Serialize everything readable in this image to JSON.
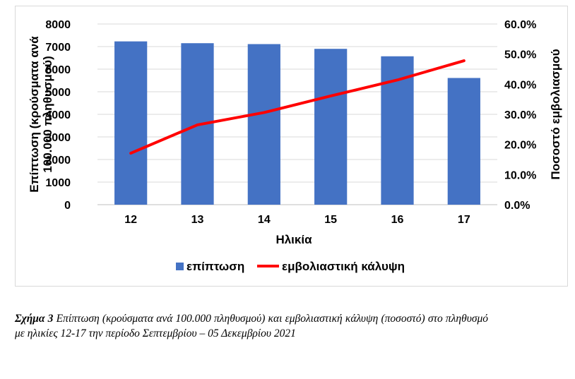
{
  "chart_data": {
    "type": "bar",
    "categories": [
      "12",
      "13",
      "14",
      "15",
      "16",
      "17"
    ],
    "series": [
      {
        "name": "επίπτωση",
        "kind": "bar",
        "axis": "left",
        "color": "#4472C4",
        "values": [
          7230,
          7150,
          7110,
          6900,
          6570,
          5610
        ]
      },
      {
        "name": "εμβολιαστική κάλυψη",
        "kind": "line",
        "axis": "right",
        "color": "#FF0000",
        "values": [
          0.171,
          0.265,
          0.306,
          0.361,
          0.414,
          0.478
        ]
      }
    ],
    "xlabel": "Ηλικία",
    "ylabel": "Επίπτωση (κρούσματα ανά 100.000 πληθυσμού)",
    "ylabel_lines": [
      "Επίπτωση (κρούσματα ανά",
      "100.000 πληθυσμού)"
    ],
    "y2label": "Ποσοστό εμβολιασμού",
    "ylim": [
      0,
      8000
    ],
    "y2lim": [
      0,
      0.6
    ],
    "yticks": [
      "0",
      "1000",
      "2000",
      "3000",
      "4000",
      "5000",
      "6000",
      "7000",
      "8000"
    ],
    "y2ticks": [
      "0.0%",
      "10.0%",
      "20.0%",
      "30.0%",
      "40.0%",
      "50.0%",
      "60.0%"
    ],
    "grid": true,
    "legend_position": "bottom"
  },
  "caption": {
    "label": "Σχήμα 3",
    "text": "Επίπτωση (κρούσματα ανά 100.000 πληθυσμού) και εμβολιαστική κάλυψη (ποσοστό) στο πληθυσμό με ηλικίες 12-17 την περίοδο Σεπτεμβρίου – 05 Δεκεμβρίου 2021"
  }
}
